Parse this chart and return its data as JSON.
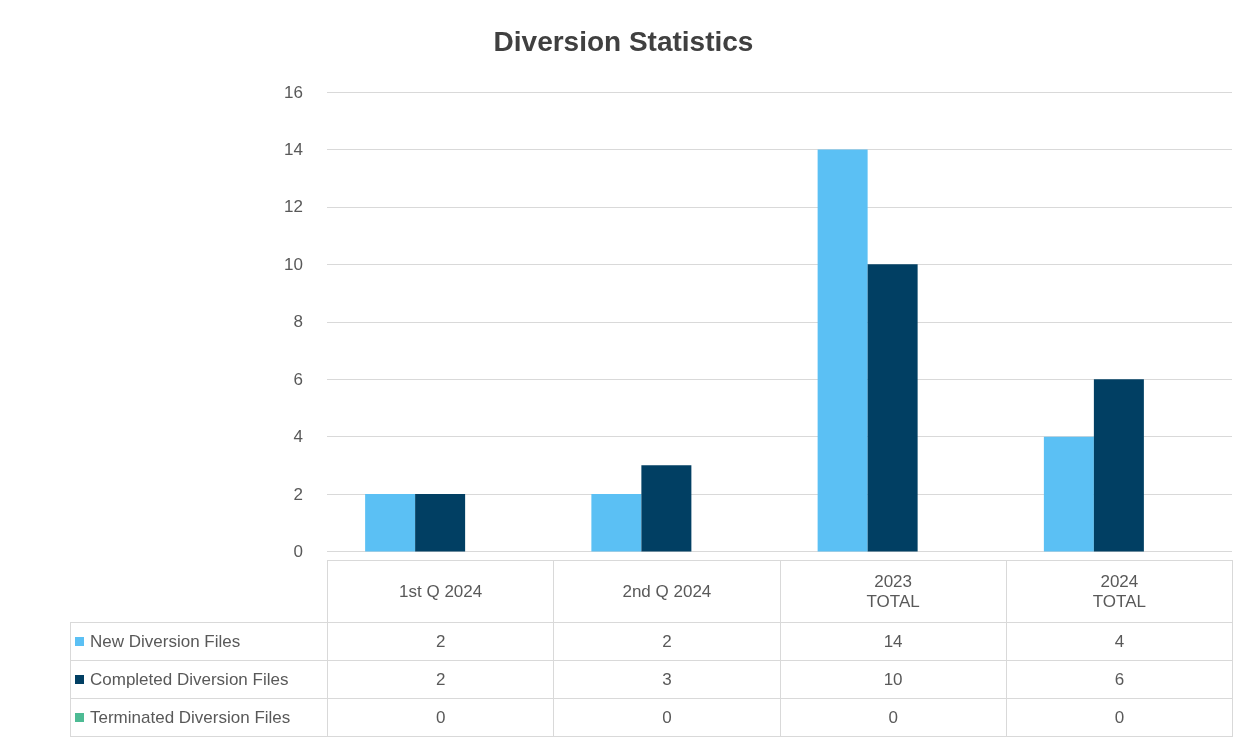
{
  "chart_data": {
    "type": "bar",
    "title": "Diversion Statistics",
    "categories": [
      "1st Q 2024",
      "2nd Q 2024",
      "2023\nTOTAL",
      "2024\nTOTAL"
    ],
    "series": [
      {
        "name": "New Diversion Files",
        "color": "#5bc0f4",
        "values": [
          2,
          2,
          14,
          4
        ]
      },
      {
        "name": "Completed Diversion Files",
        "color": "#013f63",
        "values": [
          2,
          3,
          10,
          6
        ]
      },
      {
        "name": "Terminated Diversion Files",
        "color": "#4dbb94",
        "values": [
          0,
          0,
          0,
          0
        ]
      }
    ],
    "ylim": [
      0,
      16
    ],
    "yticks": [
      0,
      2,
      4,
      6,
      8,
      10,
      12,
      14,
      16
    ],
    "grid": "y",
    "legend": "bottom",
    "data_labels": true
  }
}
